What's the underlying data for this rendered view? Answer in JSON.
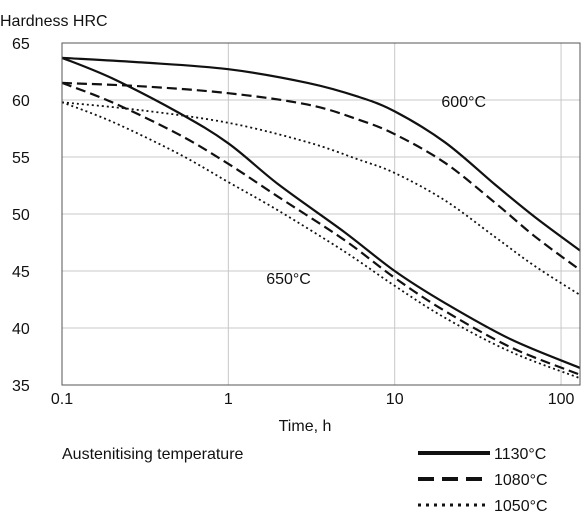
{
  "chart_data": {
    "type": "line",
    "ylabel": "Hardness HRC",
    "xlabel": "Time, h",
    "x_scale": "log",
    "xlim": [
      0.1,
      130
    ],
    "ylim": [
      35,
      65
    ],
    "x_ticks": [
      0.1,
      1,
      10,
      100
    ],
    "x_tick_labels": [
      "0.1",
      "1",
      "10",
      "100"
    ],
    "y_ticks": [
      35,
      40,
      45,
      50,
      55,
      60,
      65
    ],
    "y_tick_labels": [
      "35",
      "40",
      "45",
      "50",
      "55",
      "60",
      "65"
    ],
    "grid": true,
    "legend_title": "Austenitising temperature",
    "legend_position": "bottom-right",
    "annotations": [
      {
        "text": "600°C",
        "x": 26,
        "y": 59.9
      },
      {
        "text": "650°C",
        "x": 2.3,
        "y": 44.4
      }
    ],
    "series": [
      {
        "name": "1130°C",
        "group": "600°C",
        "style": "solid",
        "x": [
          0.1,
          0.3,
          1,
          3,
          6,
          10,
          20,
          40,
          70,
          130
        ],
        "y": [
          63.7,
          63.3,
          62.7,
          61.5,
          60.3,
          59.0,
          56.3,
          52.6,
          49.7,
          46.8
        ]
      },
      {
        "name": "1080°C",
        "group": "600°C",
        "style": "dashed",
        "x": [
          0.1,
          0.3,
          1,
          3,
          6,
          10,
          20,
          40,
          70,
          130
        ],
        "y": [
          61.5,
          61.2,
          60.6,
          59.6,
          58.3,
          57.0,
          54.5,
          51.0,
          48.0,
          45.1
        ]
      },
      {
        "name": "1050°C",
        "group": "600°C",
        "style": "dotted",
        "x": [
          0.1,
          0.3,
          1,
          3,
          6,
          10,
          20,
          40,
          70,
          130
        ],
        "y": [
          59.8,
          59.1,
          58.0,
          56.3,
          54.8,
          53.6,
          51.2,
          48.0,
          45.4,
          42.9
        ]
      },
      {
        "name": "1130°C",
        "group": "650°C",
        "style": "solid",
        "x": [
          0.1,
          0.2,
          0.5,
          1,
          2,
          5,
          10,
          20,
          50,
          130
        ],
        "y": [
          63.7,
          61.9,
          58.9,
          56.2,
          52.6,
          48.4,
          45.0,
          42.2,
          39.0,
          36.5
        ]
      },
      {
        "name": "1080°C",
        "group": "650°C",
        "style": "dashed",
        "x": [
          0.1,
          0.2,
          0.5,
          1,
          2,
          5,
          10,
          20,
          50,
          130
        ],
        "y": [
          61.5,
          59.8,
          57.0,
          54.4,
          51.5,
          47.7,
          44.4,
          41.5,
          38.3,
          35.9
        ]
      },
      {
        "name": "1050°C",
        "group": "650°C",
        "style": "dotted",
        "x": [
          0.1,
          0.2,
          0.5,
          1,
          2,
          5,
          10,
          20,
          50,
          130
        ],
        "y": [
          59.8,
          58.1,
          55.3,
          52.8,
          50.3,
          46.7,
          43.7,
          40.9,
          37.9,
          35.6
        ]
      }
    ],
    "legend": [
      {
        "label": "1130°C",
        "style": "solid"
      },
      {
        "label": "1080°C",
        "style": "dashed"
      },
      {
        "label": "1050°C",
        "style": "dotted"
      }
    ]
  }
}
